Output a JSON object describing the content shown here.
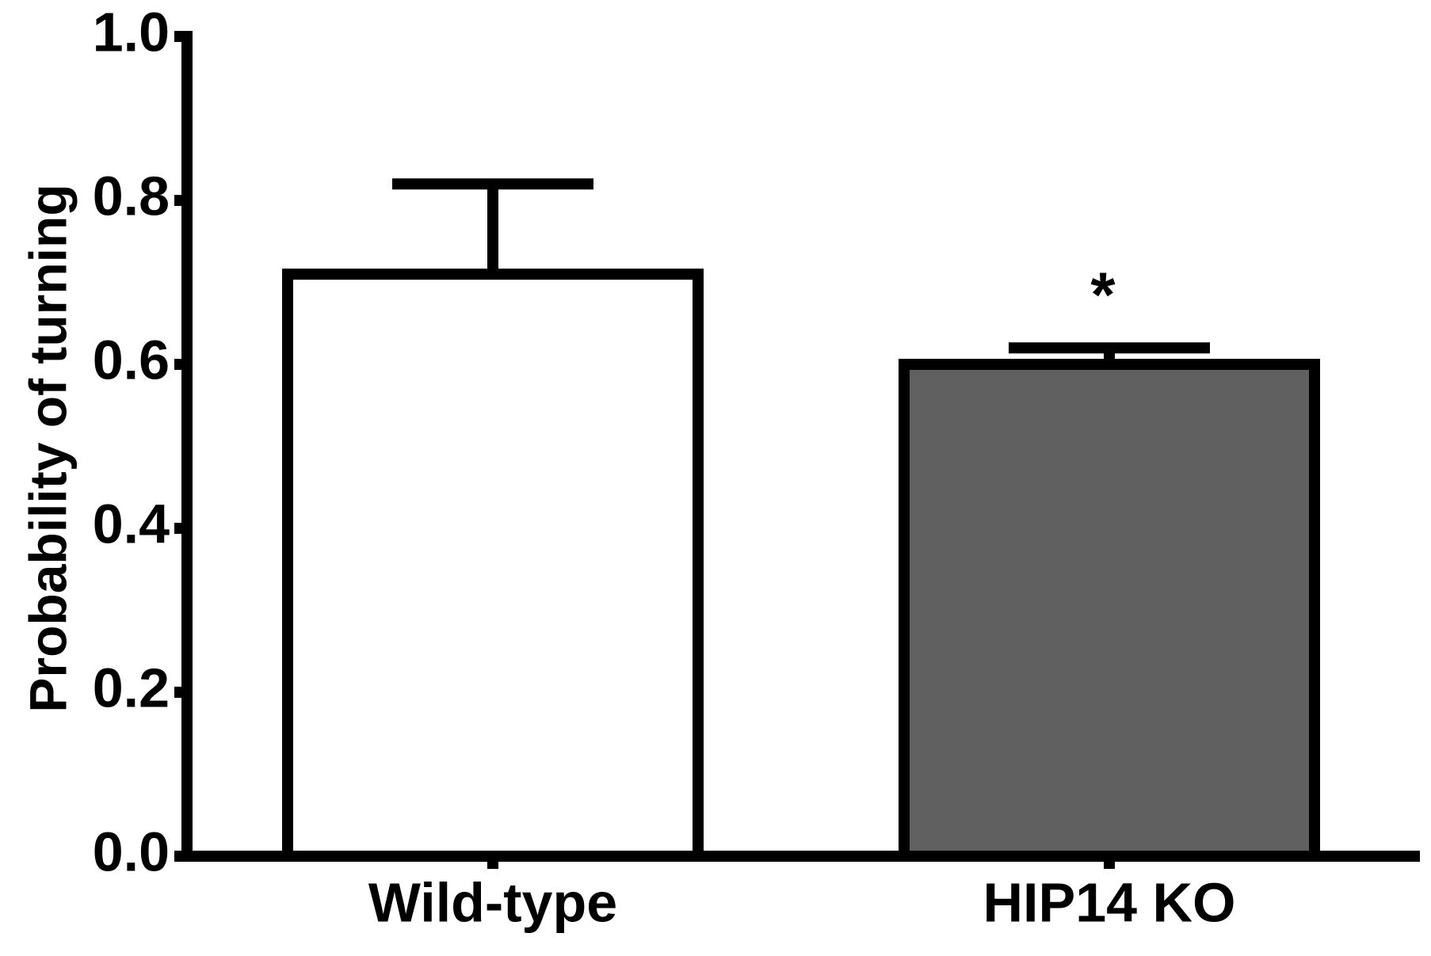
{
  "chart_data": {
    "type": "bar",
    "y_label": "Probability of turning",
    "categories": [
      "Wild-type",
      "HIP14 KO"
    ],
    "values": [
      0.71,
      0.6
    ],
    "errors": [
      0.11,
      0.02
    ],
    "colors": [
      "#ffffff",
      "#606060"
    ],
    "significance": [
      null,
      "*"
    ],
    "ylim": [
      0,
      1.0
    ],
    "yticks": [
      {
        "value": 0,
        "label": "0.0"
      },
      0.2,
      0.4,
      0.6,
      0.8,
      {
        "value": 1.0,
        "label": "1.0"
      }
    ],
    "grid": false
  }
}
